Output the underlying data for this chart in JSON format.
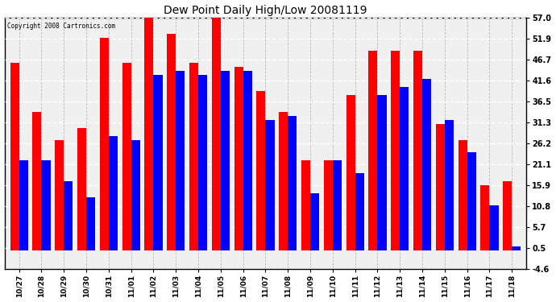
{
  "title": "Dew Point Daily High/Low 20081119",
  "copyright": "Copyright 2008 Cartronics.com",
  "dates": [
    "10/27",
    "10/28",
    "10/29",
    "10/30",
    "10/31",
    "11/01",
    "11/02",
    "11/03",
    "11/04",
    "11/05",
    "11/06",
    "11/07",
    "11/08",
    "11/09",
    "11/10",
    "11/11",
    "11/12",
    "11/13",
    "11/14",
    "11/15",
    "11/16",
    "11/17",
    "11/18"
  ],
  "highs": [
    46.0,
    34.0,
    27.0,
    30.0,
    52.0,
    46.0,
    57.0,
    53.0,
    46.0,
    57.0,
    45.0,
    39.0,
    34.0,
    22.0,
    22.0,
    38.0,
    49.0,
    49.0,
    49.0,
    31.0,
    27.0,
    16.0,
    17.0
  ],
  "lows": [
    22.0,
    22.0,
    17.0,
    13.0,
    28.0,
    27.0,
    43.0,
    44.0,
    43.0,
    44.0,
    44.0,
    32.0,
    33.0,
    14.0,
    22.0,
    19.0,
    38.0,
    40.0,
    42.0,
    32.0,
    24.0,
    11.0,
    1.0
  ],
  "high_color": "#FF0000",
  "low_color": "#0000FF",
  "bg_color": "#FFFFFF",
  "plot_bg_color": "#FFFFFF",
  "grid_color": "#BBBBBB",
  "yticks": [
    -4.6,
    0.5,
    5.7,
    10.8,
    15.9,
    21.1,
    26.2,
    31.3,
    36.5,
    41.6,
    46.7,
    51.9,
    57.0
  ],
  "ymin": -4.6,
  "ymax": 57.0,
  "bar_width": 0.4
}
